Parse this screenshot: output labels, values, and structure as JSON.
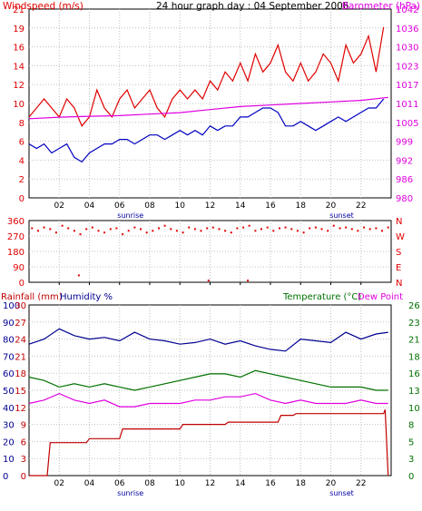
{
  "header": {
    "title": "24 hour graph day : 04 September 2006",
    "left_label": "Windspeed (m/s)",
    "right_label": "Barometer (hPa)"
  },
  "colors": {
    "wind": "#e00000",
    "wind_avg": "#0000c0",
    "barometer": "#e000e0",
    "winddir": "#e00000",
    "humidity": "#000090",
    "temperature": "#007000",
    "dewpoint": "#e000e0",
    "rainfall": "#c00000",
    "grid": "#c0c0c0"
  },
  "chart_data": [
    {
      "id": "wind",
      "type": "line",
      "x_ticks": [
        "02",
        "04",
        "06",
        "08",
        "10",
        "12",
        "14",
        "16",
        "18",
        "20",
        "22"
      ],
      "x_sub_labels": {
        "06": "sunrise",
        "20": "sunset"
      },
      "y_left": {
        "label": "Windspeed (m/s)",
        "ticks": [
          "0",
          "2",
          "4",
          "6",
          "8",
          "10",
          "12",
          "14",
          "16",
          "19",
          "21"
        ],
        "ylim": [
          0,
          21
        ]
      },
      "y_right": {
        "label": "Barometer (hPa)",
        "ticks": [
          "980",
          "986",
          "992",
          "999",
          "1005",
          "1011",
          "1017",
          "1023",
          "1030",
          "1036",
          "1042"
        ],
        "ylim": [
          980,
          1042
        ]
      },
      "series": [
        {
          "key": "gust",
          "x": [
            0,
            0.5,
            1,
            1.5,
            2,
            2.5,
            3,
            3.5,
            4,
            4.5,
            5,
            5.5,
            6,
            6.5,
            7,
            7.5,
            8,
            8.5,
            9,
            9.5,
            10,
            10.5,
            11,
            11.5,
            12,
            12.5,
            13,
            13.5,
            14,
            14.5,
            15,
            15.5,
            16,
            16.5,
            17,
            17.5,
            18,
            18.5,
            19,
            19.5,
            20,
            20.5,
            21,
            21.5,
            22,
            22.5,
            23,
            23.5
          ],
          "values": [
            9,
            10,
            11,
            10,
            9,
            11,
            10,
            8,
            9,
            12,
            10,
            9,
            11,
            12,
            10,
            11,
            12,
            10,
            9,
            11,
            12,
            11,
            12,
            11,
            13,
            12,
            14,
            13,
            15,
            13,
            16,
            14,
            15,
            17,
            14,
            13,
            15,
            13,
            14,
            16,
            15,
            13,
            17,
            15,
            16,
            18,
            14,
            19
          ]
        },
        {
          "key": "average",
          "x": [
            0,
            0.5,
            1,
            1.5,
            2,
            2.5,
            3,
            3.5,
            4,
            4.5,
            5,
            5.5,
            6,
            6.5,
            7,
            7.5,
            8,
            8.5,
            9,
            9.5,
            10,
            10.5,
            11,
            11.5,
            12,
            12.5,
            13,
            13.5,
            14,
            14.5,
            15,
            15.5,
            16,
            16.5,
            17,
            17.5,
            18,
            18.5,
            19,
            19.5,
            20,
            20.5,
            21,
            21.5,
            22,
            22.5,
            23,
            23.5
          ],
          "values": [
            6,
            5.5,
            6,
            5,
            5.5,
            6,
            4.5,
            4,
            5,
            5.5,
            6,
            6,
            6.5,
            6.5,
            6,
            6.5,
            7,
            7,
            6.5,
            7,
            7.5,
            7,
            7.5,
            7,
            8,
            7.5,
            8,
            8,
            9,
            9,
            9.5,
            10,
            10,
            9.5,
            8,
            8,
            8.5,
            8,
            7.5,
            8,
            8.5,
            9,
            8.5,
            9,
            9.5,
            10,
            10,
            11
          ]
        },
        {
          "key": "barometer",
          "x": [
            0,
            2,
            4,
            6,
            8,
            10,
            12,
            14,
            16,
            18,
            20,
            22,
            23.8
          ],
          "values": [
            1006,
            1006.5,
            1006.8,
            1007,
            1007.5,
            1008,
            1009,
            1010,
            1010.5,
            1011,
            1011.5,
            1012,
            1013
          ]
        }
      ]
    },
    {
      "id": "direction",
      "type": "scatter",
      "y_left": {
        "ticks": [
          "0",
          "90",
          "180",
          "270",
          "360"
        ],
        "ylim": [
          0,
          360
        ]
      },
      "y_right": {
        "ticks": [
          "N",
          "E",
          "S",
          "W",
          "N"
        ]
      },
      "x": [
        0.2,
        0.6,
        1,
        1.4,
        1.8,
        2.2,
        2.6,
        3,
        3.4,
        3.8,
        4.2,
        4.6,
        5,
        5.4,
        5.8,
        6.2,
        6.6,
        7,
        7.4,
        7.8,
        8.2,
        8.6,
        9,
        9.4,
        9.8,
        10.2,
        10.6,
        11,
        11.4,
        11.8,
        12.2,
        12.6,
        13,
        13.4,
        13.8,
        14.2,
        14.6,
        15,
        15.4,
        15.8,
        16.2,
        16.6,
        17,
        17.4,
        17.8,
        18.2,
        18.6,
        19,
        19.4,
        19.8,
        20.2,
        20.6,
        21,
        21.4,
        21.8,
        22.2,
        22.6,
        23,
        23.4,
        23.8,
        3.3,
        11.9,
        14.5
      ],
      "values": [
        315,
        300,
        320,
        310,
        290,
        330,
        315,
        300,
        280,
        310,
        320,
        300,
        290,
        310,
        315,
        280,
        300,
        320,
        310,
        290,
        300,
        315,
        330,
        310,
        300,
        290,
        320,
        310,
        300,
        315,
        320,
        310,
        300,
        290,
        315,
        320,
        330,
        300,
        310,
        320,
        300,
        315,
        320,
        310,
        300,
        290,
        315,
        320,
        310,
        300,
        330,
        315,
        320,
        310,
        300,
        320,
        310,
        315,
        300,
        320,
        40,
        10,
        10
      ]
    },
    {
      "id": "climate",
      "type": "line",
      "y_left": {
        "labels": [
          "Rainfall (mm)",
          "Humidity %"
        ],
        "ticks_humidity": [
          "0",
          "10",
          "20",
          "30",
          "40",
          "50",
          "60",
          "70",
          "80",
          "90",
          "100"
        ],
        "ticks_rain": [
          "0",
          "3",
          "6",
          "9",
          "12",
          "15",
          "18",
          "21",
          "24",
          "27",
          "30"
        ]
      },
      "y_right": {
        "labels": [
          "Temperature (°C)",
          "Dew Point"
        ],
        "ticks": [
          "0",
          "3",
          "5",
          "8",
          "10",
          "13",
          "16",
          "18",
          "21",
          "23",
          "26"
        ],
        "ylim": [
          0,
          26
        ]
      },
      "series": [
        {
          "key": "humidity",
          "x": [
            0,
            1,
            2,
            3,
            4,
            5,
            6,
            7,
            8,
            9,
            10,
            11,
            12,
            13,
            14,
            15,
            16,
            17,
            18,
            19,
            20,
            21,
            22,
            23,
            23.8
          ],
          "values": [
            77,
            80,
            86,
            82,
            80,
            81,
            79,
            84,
            80,
            79,
            77,
            78,
            80,
            77,
            79,
            76,
            74,
            73,
            80,
            79,
            78,
            84,
            80,
            83,
            84
          ]
        },
        {
          "key": "temperature",
          "x": [
            0,
            1,
            2,
            3,
            4,
            5,
            6,
            7,
            8,
            9,
            10,
            11,
            12,
            13,
            14,
            15,
            16,
            17,
            18,
            19,
            20,
            21,
            22,
            23,
            23.8
          ],
          "values": [
            15,
            14.5,
            13.5,
            14,
            13.5,
            14,
            13.5,
            13,
            13.5,
            14,
            14.5,
            15,
            15.5,
            15.5,
            15,
            16,
            15.5,
            15,
            14.5,
            14,
            13.5,
            13.5,
            13.5,
            13,
            13
          ]
        },
        {
          "key": "dewpoint",
          "x": [
            0,
            1,
            2,
            3,
            4,
            5,
            6,
            7,
            8,
            9,
            10,
            11,
            12,
            13,
            14,
            15,
            16,
            17,
            18,
            19,
            20,
            21,
            22,
            23,
            23.8
          ],
          "values": [
            11,
            11.5,
            12.5,
            11.5,
            11,
            11.5,
            10.5,
            10.5,
            11,
            11,
            11,
            11.5,
            11.5,
            12,
            12,
            12.5,
            11.5,
            11,
            11.5,
            11,
            11,
            11,
            11.5,
            11,
            11
          ]
        },
        {
          "key": "rainfall",
          "x": [
            0,
            1.2,
            1.4,
            3.8,
            4.0,
            6.0,
            6.2,
            10.0,
            10.2,
            13.0,
            13.2,
            16.5,
            16.7,
            17.5,
            17.7,
            23.5,
            23.6,
            23.8
          ],
          "values": [
            0,
            0,
            5.8,
            5.8,
            6.5,
            6.5,
            8.2,
            8.2,
            9.0,
            9.0,
            9.4,
            9.4,
            10.6,
            10.6,
            10.9,
            10.9,
            11.6,
            0
          ]
        }
      ]
    }
  ]
}
